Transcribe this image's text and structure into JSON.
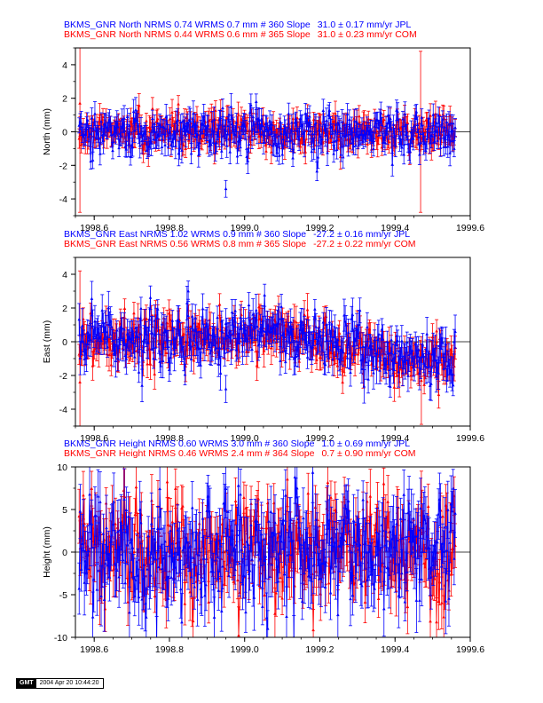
{
  "colors": {
    "jpl": "#0000ff",
    "com": "#ff0000",
    "axis": "#000000"
  },
  "chart_data": [
    {
      "type": "scatter",
      "name": "north",
      "title_lines": [
        {
          "series": "JPL",
          "color": "#0000ff",
          "parts": [
            "BKMS_GNR North NRMS 0.74 WRMS  0.7 mm # 360 Slope",
            "31.0 ±  0.17 mm/yr JPL"
          ]
        },
        {
          "series": "COM",
          "color": "#ff0000",
          "parts": [
            "BKMS_GNR North NRMS 0.44 WRMS  0.6 mm # 365 Slope",
            "31.0 ±  0.23 mm/yr COM"
          ]
        }
      ],
      "ylabel": "North (mm)",
      "xlim": [
        1998.55,
        1999.6
      ],
      "ylim": [
        -5,
        5
      ],
      "xticks": [
        1998.6,
        1998.8,
        1999.0,
        1999.2,
        1999.4,
        1999.6
      ],
      "xtick_labels": [
        "1998.6",
        "1998.8",
        "1999.0",
        "1999.2",
        "1999.4",
        "1999.6"
      ],
      "yticks": [
        -4,
        -2,
        0,
        2,
        4
      ],
      "ytick_labels": [
        "-4",
        "-2",
        "0",
        "2",
        "4"
      ],
      "x_range": [
        1998.56,
        1999.56
      ],
      "series": [
        {
          "name": "COM",
          "count": 365,
          "color": "#ff0000",
          "sigma": 0.55,
          "err": 0.6,
          "trend": [
            0,
            0
          ],
          "outliers": [
            {
              "x": 1998.562,
              "y": 1.7,
              "err": 6.5
            },
            {
              "x": 1999.468,
              "y": 0.0,
              "err": 4.8
            }
          ]
        },
        {
          "name": "JPL",
          "count": 360,
          "color": "#0000ff",
          "sigma": 0.7,
          "err": 0.6,
          "trend": [
            0,
            0
          ],
          "outliers": [
            {
              "x": 1998.95,
              "y": -3.4,
              "err": 0.5
            }
          ]
        }
      ]
    },
    {
      "type": "scatter",
      "name": "east",
      "title_lines": [
        {
          "series": "JPL",
          "color": "#0000ff",
          "parts": [
            "BKMS_GNR East NRMS 1.02 WRMS  0.9 mm # 360 Slope",
            "-27.2 ±  0.16 mm/yr JPL"
          ]
        },
        {
          "series": "COM",
          "color": "#ff0000",
          "parts": [
            "BKMS_GNR East NRMS 0.56 WRMS  0.8 mm # 365 Slope",
            "-27.2 ±  0.22 mm/yr COM"
          ]
        }
      ],
      "ylabel": "East (mm)",
      "xlim": [
        1998.55,
        1999.6
      ],
      "ylim": [
        -5,
        5
      ],
      "xticks": [
        1998.6,
        1998.8,
        1999.0,
        1999.2,
        1999.4,
        1999.6
      ],
      "xtick_labels": [
        "1998.6",
        "1998.8",
        "1999.0",
        "1999.2",
        "1999.4",
        "1999.6"
      ],
      "yticks": [
        -4,
        -2,
        0,
        2,
        4
      ],
      "ytick_labels": [
        "-4",
        "-2",
        "0",
        "2",
        "4"
      ],
      "x_range": [
        1998.56,
        1999.56
      ],
      "series": [
        {
          "name": "COM",
          "count": 365,
          "color": "#ff0000",
          "sigma": 0.75,
          "err": 0.75,
          "trend": [
            0,
            0.6,
            -1.5
          ],
          "outliers": [
            {
              "x": 1998.562,
              "y": -2.4,
              "err": 6.6
            },
            {
              "x": 1999.47,
              "y": -2.3,
              "err": 2.6
            }
          ]
        },
        {
          "name": "JPL",
          "count": 360,
          "color": "#0000ff",
          "sigma": 0.85,
          "err": 0.8,
          "trend": [
            0,
            0.6,
            -1.5
          ],
          "outliers": [
            {
              "x": 1998.85,
              "y": 3.0,
              "err": 0.6
            },
            {
              "x": 1998.95,
              "y": -2.8,
              "err": 0.8
            }
          ]
        }
      ]
    },
    {
      "type": "scatter",
      "name": "height",
      "title_lines": [
        {
          "series": "JPL",
          "color": "#0000ff",
          "parts": [
            "BKMS_GNR Height NRMS 0.60 WRMS  3.0 mm # 360 Slope",
            "1.0 ±  0.69 mm/yr JPL"
          ]
        },
        {
          "series": "COM",
          "color": "#ff0000",
          "parts": [
            "BKMS_GNR Height NRMS 0.46 WRMS  2.4 mm # 364 Slope",
            "0.7 ±  0.90 mm/yr COM"
          ]
        }
      ],
      "ylabel": "Height (mm)",
      "xlim": [
        1998.55,
        1999.6
      ],
      "ylim": [
        -10,
        10
      ],
      "xticks": [
        1998.6,
        1998.8,
        1999.0,
        1999.2,
        1999.4,
        1999.6
      ],
      "xtick_labels": [
        "1998.6",
        "1998.8",
        "1999.0",
        "1999.2",
        "1999.4",
        "1999.6"
      ],
      "yticks": [
        -10,
        -5,
        0,
        5,
        10
      ],
      "ytick_labels": [
        "-10",
        "-5",
        "0",
        "5",
        "10"
      ],
      "x_range": [
        1998.56,
        1999.56
      ],
      "series": [
        {
          "name": "COM",
          "count": 364,
          "color": "#ff0000",
          "sigma": 3.2,
          "err": 2.6,
          "trend": [
            0,
            0
          ],
          "outliers": [
            {
              "x": 1999.47,
              "y": 6.5,
              "err": 3.0
            }
          ]
        },
        {
          "name": "JPL",
          "count": 360,
          "color": "#0000ff",
          "sigma": 3.5,
          "err": 3.0,
          "trend": [
            0,
            0
          ],
          "outliers": []
        }
      ]
    }
  ],
  "footer": {
    "logo": "GMT",
    "timestamp": "2004 Apr 20 10:44:20"
  }
}
